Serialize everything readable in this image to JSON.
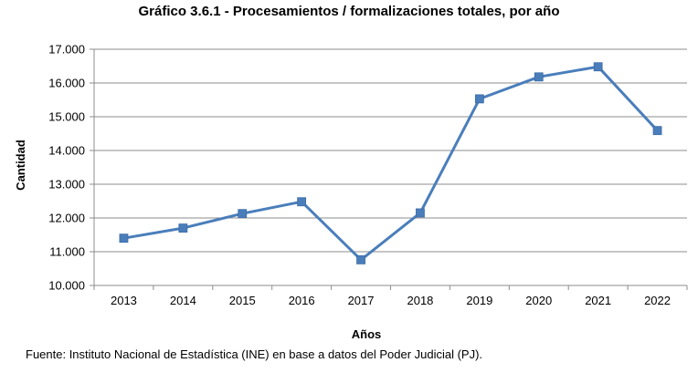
{
  "chart_data": {
    "type": "line",
    "title": "Gráfico 3.6.1 - Procesamientos  / formalizaciones  totales, por año",
    "xlabel": "Años",
    "ylabel": "Cantidad",
    "categories": [
      "2013",
      "2014",
      "2015",
      "2016",
      "2017",
      "2018",
      "2019",
      "2020",
      "2021",
      "2022"
    ],
    "series": [
      {
        "values": [
          11400,
          11700,
          12130,
          12480,
          10760,
          12150,
          15530,
          16180,
          16480,
          14590
        ]
      }
    ],
    "ylim": [
      10000,
      17000
    ],
    "y_ticks": [
      "10.000",
      "11.000",
      "12.000",
      "13.000",
      "14.000",
      "15.000",
      "16.000",
      "17.000"
    ],
    "y_tick_values": [
      10000,
      11000,
      12000,
      13000,
      14000,
      15000,
      16000,
      17000
    ],
    "grid": true,
    "legend": "none",
    "colors": {
      "series": "#4a7ebb",
      "marker": "#4a7ebb",
      "grid": "#8c8c8c",
      "axis": "#8c8c8c"
    }
  },
  "source": "Fuente: Instituto Nacional de Estadística (INE) en base a datos del Poder Judicial (PJ)."
}
